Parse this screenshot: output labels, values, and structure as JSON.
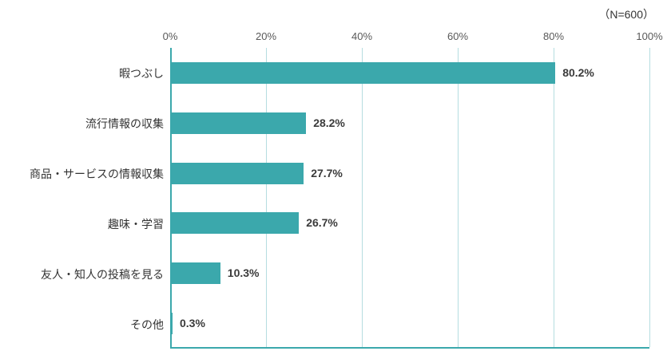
{
  "note": "（N=600）",
  "chart_data": {
    "type": "bar",
    "orientation": "horizontal",
    "title": "",
    "note": "（N=600）",
    "categories": [
      "暇つぶし",
      "流行情報の収集",
      "商品・サービスの情報収集",
      "趣味・学習",
      "友人・知人の投稿を見る",
      "その他"
    ],
    "values": [
      80.2,
      28.2,
      27.7,
      26.7,
      10.3,
      0.3
    ],
    "value_labels": [
      "80.2%",
      "28.2%",
      "27.7%",
      "26.7%",
      "10.3%",
      "0.3%"
    ],
    "x_ticks": [
      0,
      20,
      40,
      60,
      80,
      100
    ],
    "x_tick_labels": [
      "0%",
      "20%",
      "40%",
      "60%",
      "80%",
      "100%"
    ],
    "xlim": [
      0,
      100
    ],
    "grid": true,
    "legend_position": "none",
    "bar_color": "#3ba8ac",
    "grid_color": "#b5dde0",
    "axis_color": "#3ba8ac"
  }
}
